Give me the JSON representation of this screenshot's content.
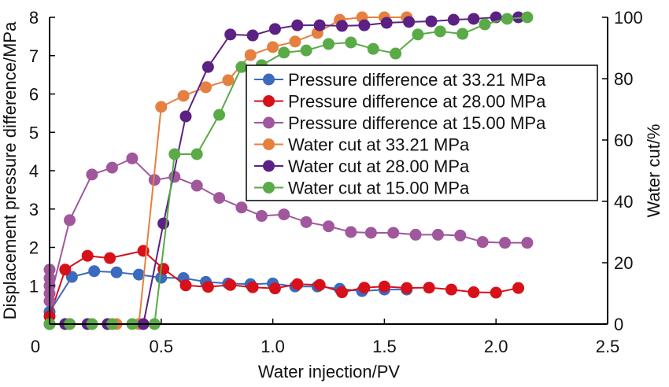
{
  "chart_data": {
    "type": "line",
    "title": "",
    "xlabel": "Water injection/PV",
    "ylabel_left": "Displacement pressure difference/MPa",
    "ylabel_right": "Water cut/%",
    "xlim": [
      0,
      2.5
    ],
    "ylim_left": [
      0,
      8
    ],
    "ylim_right": [
      0,
      100
    ],
    "x_ticks": [
      0,
      0.5,
      1.0,
      1.5,
      2.0,
      2.5
    ],
    "x_tick_labels": [
      "0",
      "0.5",
      "1.0",
      "1.5",
      "2.0",
      "2.5"
    ],
    "y_left_ticks": [
      1,
      2,
      3,
      4,
      5,
      6,
      7,
      8
    ],
    "y_left_tick_labels": [
      "1",
      "2",
      "3",
      "4",
      "5",
      "6",
      "7",
      "8"
    ],
    "y_right_ticks": [
      0,
      20,
      40,
      60,
      80,
      100
    ],
    "y_right_tick_labels": [
      "0",
      "20",
      "40",
      "60",
      "80",
      "100"
    ],
    "grid": false,
    "legend_position": "top-right",
    "series": [
      {
        "name": "Pressure difference at 33.21 MPa",
        "axis": "left",
        "color": "#3a6bbf",
        "x": [
          0.0,
          0.1,
          0.2,
          0.3,
          0.4,
          0.5,
          0.6,
          0.7,
          0.8,
          0.9,
          1.0,
          1.1,
          1.2,
          1.3,
          1.4,
          1.5,
          1.6
        ],
        "y": [
          0.32,
          1.23,
          1.38,
          1.35,
          1.29,
          1.21,
          1.2,
          1.1,
          1.06,
          1.04,
          1.06,
          0.98,
          0.98,
          0.92,
          0.86,
          0.9,
          0.9
        ]
      },
      {
        "name": "Pressure difference at 28.00 MPa",
        "axis": "left",
        "color": "#d7101a",
        "x": [
          0.0,
          0.07,
          0.17,
          0.27,
          0.42,
          0.51,
          0.61,
          0.71,
          0.81,
          0.91,
          1.01,
          1.11,
          1.21,
          1.31,
          1.41,
          1.5,
          1.6,
          1.7,
          1.8,
          1.9,
          2.0,
          2.1
        ],
        "y": [
          0.2,
          1.42,
          1.78,
          1.72,
          1.91,
          1.44,
          1.01,
          0.97,
          1.02,
          0.96,
          0.93,
          1.04,
          1.02,
          0.83,
          0.95,
          0.98,
          0.94,
          0.95,
          0.9,
          0.83,
          0.82,
          0.94
        ]
      },
      {
        "name": "Pressure difference at 15.00 MPa",
        "axis": "left",
        "color": "#a0579c",
        "x": [
          0.0,
          0.0,
          0.0,
          0.0,
          0.0,
          0.09,
          0.19,
          0.28,
          0.37,
          0.47,
          0.56,
          0.66,
          0.76,
          0.86,
          0.95,
          1.05,
          1.15,
          1.25,
          1.35,
          1.44,
          1.54,
          1.64,
          1.74,
          1.84,
          1.94,
          2.04,
          2.14
        ],
        "y": [
          1.42,
          1.2,
          1.0,
          0.8,
          0.6,
          2.71,
          3.9,
          4.08,
          4.32,
          3.76,
          3.84,
          3.61,
          3.29,
          3.04,
          2.82,
          2.86,
          2.66,
          2.55,
          2.4,
          2.38,
          2.38,
          2.33,
          2.33,
          2.31,
          2.14,
          2.12,
          2.12
        ]
      },
      {
        "name": "Water cut at 33.21 MPa",
        "axis": "right",
        "color": "#e58040",
        "x": [
          0.0,
          0.09,
          0.19,
          0.3,
          0.4,
          0.5,
          0.6,
          0.7,
          0.8,
          0.9,
          1.0,
          1.1,
          1.2,
          1.3,
          1.4,
          1.5,
          1.6
        ],
        "y": [
          0,
          0,
          0,
          0,
          0,
          70.8,
          74.4,
          77.2,
          79.5,
          87.7,
          90.3,
          92.1,
          94.9,
          99.2,
          100,
          100,
          100
        ]
      },
      {
        "name": "Water cut at 28.00 MPa",
        "axis": "right",
        "color": "#5b2183",
        "x": [
          0.0,
          0.07,
          0.17,
          0.26,
          0.42,
          0.51,
          0.61,
          0.71,
          0.81,
          0.91,
          1.01,
          1.11,
          1.21,
          1.31,
          1.41,
          1.51,
          1.61,
          1.71,
          1.81,
          1.9,
          2.0,
          2.1
        ],
        "y": [
          0,
          0,
          0,
          0,
          0,
          32.8,
          67.7,
          83.8,
          94.4,
          94.1,
          96.2,
          97.4,
          97.4,
          97.2,
          97.4,
          98.2,
          98.5,
          98.7,
          99.2,
          99.5,
          100,
          100
        ]
      },
      {
        "name": "Water cut at 15.00 MPa",
        "axis": "right",
        "color": "#5aaa47",
        "x": [
          0.0,
          0.09,
          0.19,
          0.28,
          0.37,
          0.47,
          0.56,
          0.66,
          0.76,
          0.86,
          0.95,
          1.05,
          1.15,
          1.25,
          1.35,
          1.45,
          1.55,
          1.65,
          1.75,
          1.85,
          1.95,
          2.05,
          2.14
        ],
        "y": [
          0,
          0,
          0,
          0,
          0,
          0,
          55.4,
          55.4,
          68.2,
          83.8,
          84.4,
          88.5,
          89.2,
          91.3,
          91.8,
          89.7,
          88.2,
          94.4,
          95.4,
          94.6,
          97.7,
          99.5,
          100
        ]
      }
    ]
  }
}
